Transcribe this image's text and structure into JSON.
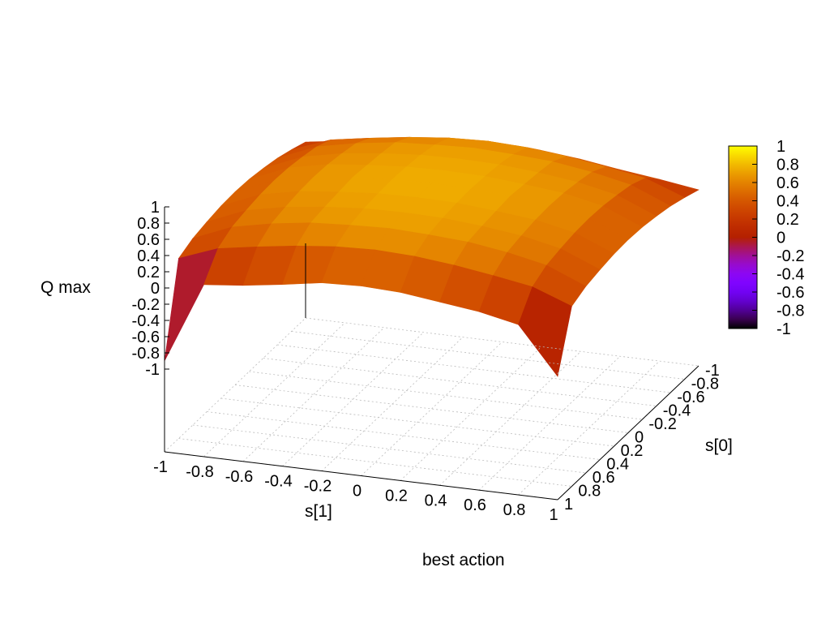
{
  "chart_data": {
    "type": "surface",
    "title": "",
    "xlabel": "s[1]",
    "ylabel": "s[0]",
    "zlabel": "Q max",
    "xlim": [
      -1,
      1
    ],
    "ylim": [
      -1,
      1
    ],
    "zlim": [
      -1,
      1
    ],
    "x_ticks": [
      "-1",
      "-0.8",
      "-0.6",
      "-0.4",
      "-0.2",
      "0",
      "0.2",
      "0.4",
      "0.6",
      "0.8",
      "1"
    ],
    "y_ticks": [
      "-1",
      "-0.8",
      "-0.6",
      "-0.4",
      "-0.2",
      "0",
      "0.2",
      "0.4",
      "0.6",
      "0.8",
      "1"
    ],
    "z_ticks": [
      "1",
      "0.8",
      "0.6",
      "0.4",
      "0.2",
      "0",
      "-0.2",
      "-0.4",
      "-0.6",
      "-0.8",
      "-1"
    ],
    "colorbar_ticks": [
      "1",
      "0.8",
      "0.6",
      "0.4",
      "0.2",
      "0",
      "-0.2",
      "-0.4",
      "-0.6",
      "-0.8",
      "-1"
    ],
    "colorbar_range": [
      -1,
      1
    ],
    "colormap": "gnuplot-pm3d (black-purple-red-orange-yellow)",
    "grid": true,
    "grid_x": [
      -1,
      -0.8,
      -0.6,
      -0.4,
      -0.2,
      0,
      0.2,
      0.4,
      0.6,
      0.8,
      1
    ],
    "grid_y": [
      -1,
      -0.8,
      -0.6,
      -0.4,
      -0.2,
      0,
      0.2,
      0.4,
      0.6,
      0.8,
      1
    ],
    "z_grid": [
      [
        0.15,
        0.22,
        0.28,
        0.35,
        0.4,
        0.42,
        0.4,
        0.35,
        0.28,
        0.22,
        0.15
      ],
      [
        0.22,
        0.4,
        0.48,
        0.55,
        0.6,
        0.62,
        0.6,
        0.55,
        0.48,
        0.4,
        0.22
      ],
      [
        0.28,
        0.48,
        0.58,
        0.65,
        0.68,
        0.7,
        0.68,
        0.65,
        0.58,
        0.48,
        0.28
      ],
      [
        0.32,
        0.52,
        0.62,
        0.68,
        0.72,
        0.73,
        0.72,
        0.68,
        0.62,
        0.52,
        0.32
      ],
      [
        0.35,
        0.55,
        0.65,
        0.7,
        0.74,
        0.75,
        0.74,
        0.7,
        0.65,
        0.55,
        0.35
      ],
      [
        0.36,
        0.56,
        0.66,
        0.72,
        0.75,
        0.76,
        0.75,
        0.72,
        0.66,
        0.56,
        0.36
      ],
      [
        0.35,
        0.55,
        0.65,
        0.7,
        0.74,
        0.75,
        0.74,
        0.7,
        0.65,
        0.55,
        0.35
      ],
      [
        0.32,
        0.52,
        0.62,
        0.68,
        0.72,
        0.73,
        0.72,
        0.68,
        0.62,
        0.52,
        0.32
      ],
      [
        0.28,
        0.48,
        0.58,
        0.65,
        0.68,
        0.7,
        0.68,
        0.65,
        0.58,
        0.48,
        0.28
      ],
      [
        0.2,
        0.38,
        0.46,
        0.53,
        0.58,
        0.6,
        0.58,
        0.53,
        0.46,
        0.38,
        0.2
      ],
      [
        -0.9,
        0.1,
        0.15,
        0.22,
        0.3,
        0.32,
        0.3,
        0.24,
        0.18,
        0.08,
        -0.5
      ]
    ],
    "legend": "colorbar right"
  },
  "footer_label": "best action"
}
